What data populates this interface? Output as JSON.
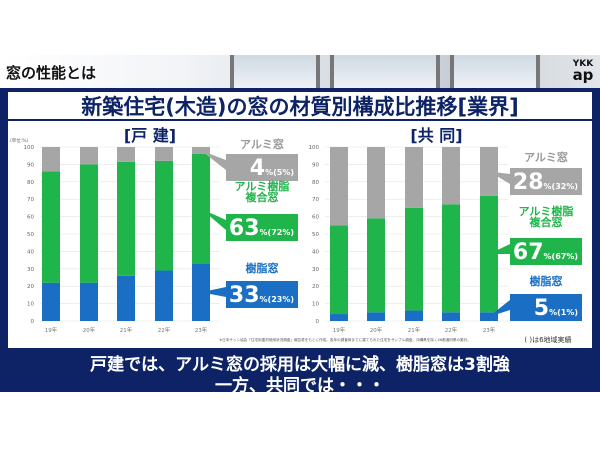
{
  "header": {
    "title": "窓の性能とは",
    "logo_top": "YKK",
    "logo_bottom": "ap"
  },
  "main_title": "新築住宅(木造)の窓の材質別構成比推移[業界]",
  "unit": "(単位:%)",
  "footnote": "※日本サッシ協会「住宅用建材使用状況調査」報告書をもとに作成。各年の調査時までに建てられた住宅をサンプル調査。沖縄県を除く46都道府県の集計。",
  "paren_note": "( )は6地域実績",
  "bottom_text": [
    "戸建では、アルミ窓の採用は大幅に減、樹脂窓は3割強",
    "一方、共同では・・・"
  ],
  "colors": {
    "aluminum": "#a6a6a6",
    "composite": "#1fb54a",
    "resin": "#1a6fc4",
    "navy": "#0d2366"
  },
  "chart_data": [
    {
      "type": "bar",
      "stacked": true,
      "title": "[戸 建]",
      "categories": [
        "19年",
        "20年",
        "21年",
        "22年",
        "23年"
      ],
      "ylim": [
        0,
        100
      ],
      "yticks": [
        0,
        10,
        20,
        30,
        40,
        50,
        60,
        70,
        80,
        90,
        100
      ],
      "grid": true,
      "series": [
        {
          "name": "樹脂窓",
          "values": [
            22,
            22,
            26,
            29,
            33
          ]
        },
        {
          "name": "アルミ樹脂複合窓",
          "values": [
            64,
            68,
            65.5,
            63,
            63
          ]
        },
        {
          "name": "アルミ窓",
          "values": [
            14,
            10,
            8.5,
            8,
            4
          ]
        }
      ],
      "callouts": [
        {
          "label": "アルミ窓",
          "value": "4",
          "unit": "%",
          "regional": "(5%)"
        },
        {
          "label": "アルミ樹脂\n複合窓",
          "value": "63",
          "unit": "%",
          "regional": "(72%)"
        },
        {
          "label": "樹脂窓",
          "value": "33",
          "unit": "%",
          "regional": "(23%)"
        }
      ]
    },
    {
      "type": "bar",
      "stacked": true,
      "title": "[共 同]",
      "categories": [
        "19年",
        "20年",
        "21年",
        "22年",
        "23年"
      ],
      "ylim": [
        0,
        100
      ],
      "yticks": [
        0,
        10,
        20,
        30,
        40,
        50,
        60,
        70,
        80,
        90,
        100
      ],
      "grid": true,
      "series": [
        {
          "name": "樹脂窓",
          "values": [
            4,
            5,
            6,
            5,
            5
          ]
        },
        {
          "name": "アルミ樹脂複合窓",
          "values": [
            51,
            54,
            59,
            62,
            67
          ]
        },
        {
          "name": "アルミ窓",
          "values": [
            45,
            41,
            35,
            33,
            28
          ]
        }
      ],
      "callouts": [
        {
          "label": "アルミ窓",
          "value": "28",
          "unit": "%",
          "regional": "(32%)"
        },
        {
          "label": "アルミ樹脂\n複合窓",
          "value": "67",
          "unit": "%",
          "regional": "(67%)"
        },
        {
          "label": "樹脂窓",
          "value": "5",
          "unit": "%",
          "regional": "(1%)"
        }
      ]
    }
  ]
}
